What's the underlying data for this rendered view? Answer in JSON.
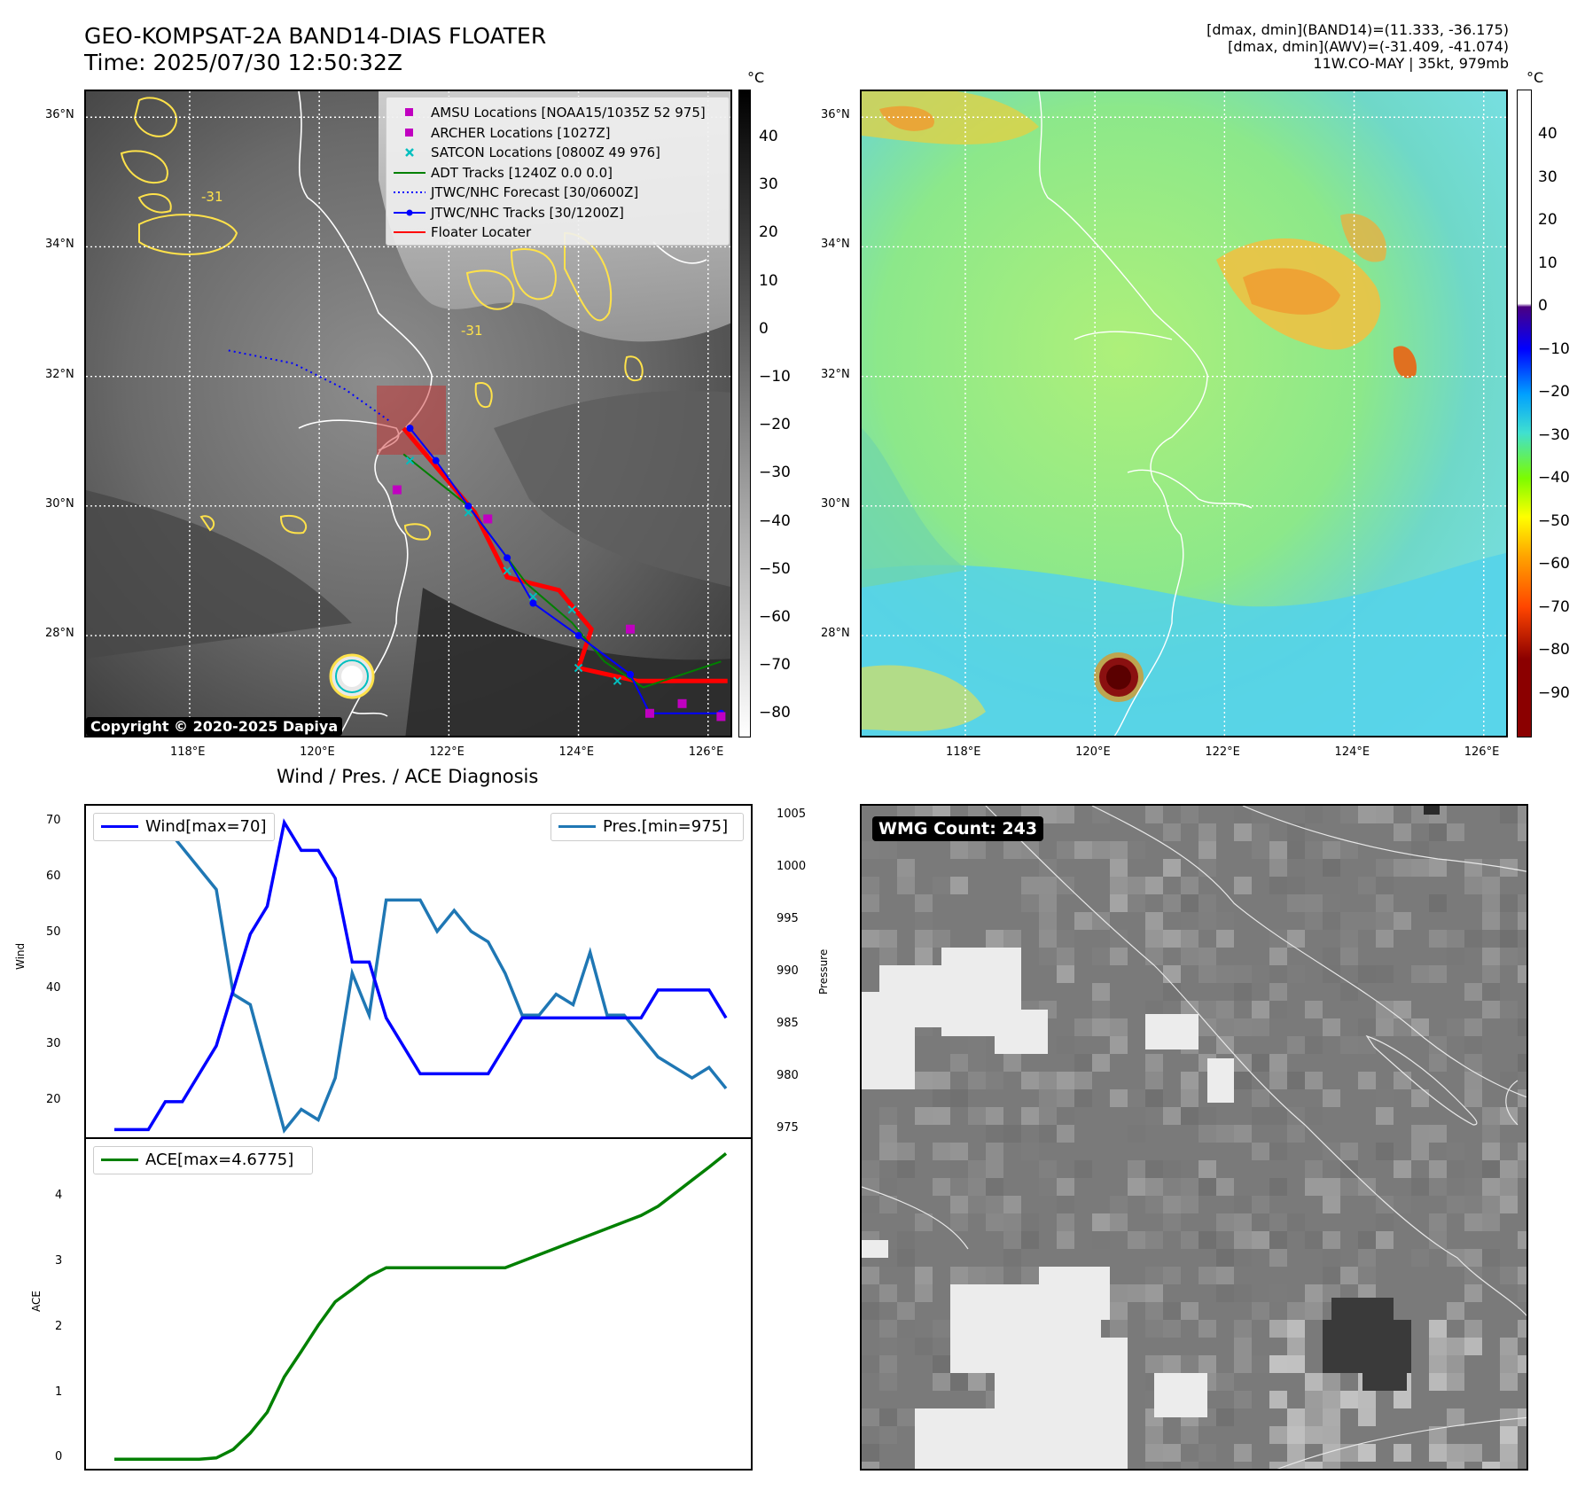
{
  "header": {
    "title_line1": "GEO-KOMPSAT-2A BAND14-DIAS FLOATER",
    "title_line2": "Time: 2025/07/30 12:50:32Z",
    "info_line1": "[dmax, dmin](BAND14)=(11.333, -36.175)",
    "info_line2": "[dmax, dmin](AWV)=(-31.409, -41.074)",
    "info_line3": "11W.CO-MAY | 35kt, 979mb"
  },
  "map": {
    "lon_ticks": [
      "118°E",
      "120°E",
      "122°E",
      "124°E",
      "126°E"
    ],
    "lat_ticks": [
      "36°N",
      "34°N",
      "32°N",
      "30°N",
      "28°N"
    ],
    "contour_labels": [
      "-31",
      "-31"
    ],
    "copyright": "Copyright © 2020-2025 Dapiya"
  },
  "legend": {
    "items": [
      {
        "label": "AMSU Locations [NOAA15/1035Z 52 975]",
        "color": "#c000c0",
        "symbol": "square"
      },
      {
        "label": "ARCHER Locations [1027Z]",
        "color": "#c000c0",
        "symbol": "square"
      },
      {
        "label": "SATCON Locations [0800Z 49 976]",
        "color": "#00bfbf",
        "symbol": "x"
      },
      {
        "label": "ADT Tracks [1240Z 0.0 0.0]",
        "color": "#008000",
        "symbol": "line"
      },
      {
        "label": "JTWC/NHC Forecast [30/0600Z]",
        "color": "#0000ff",
        "symbol": "dotted"
      },
      {
        "label": "JTWC/NHC Tracks [30/1200Z]",
        "color": "#0000ff",
        "symbol": "line-dot"
      },
      {
        "label": "Floater Locater",
        "color": "#ff0000",
        "symbol": "line"
      }
    ]
  },
  "colorbar_gray": {
    "unit": "°C",
    "ticks": [
      "40",
      "30",
      "20",
      "10",
      "0",
      "−10",
      "−20",
      "−30",
      "−40",
      "−50",
      "−60",
      "−70",
      "−80"
    ]
  },
  "colorbar_color": {
    "unit": "°C",
    "ticks": [
      "40",
      "30",
      "20",
      "10",
      "0",
      "−10",
      "−20",
      "−30",
      "−40",
      "−50",
      "−60",
      "−70",
      "−80",
      "−90"
    ]
  },
  "tracks": {
    "jtwc_forecast": [
      [
        118.6,
        32.4
      ],
      [
        119.6,
        32.2
      ],
      [
        120.4,
        31.8
      ],
      [
        121.1,
        31.3
      ]
    ],
    "jtwc_tracks": [
      [
        121.4,
        31.2
      ],
      [
        121.8,
        30.7
      ],
      [
        122.3,
        30.0
      ],
      [
        122.9,
        29.2
      ],
      [
        123.3,
        28.5
      ],
      [
        124.0,
        28.0
      ],
      [
        124.8,
        27.4
      ],
      [
        125.1,
        26.8
      ],
      [
        126.2,
        26.8
      ]
    ],
    "adt_tracks": [
      [
        121.3,
        30.8
      ],
      [
        122.3,
        30.0
      ],
      [
        123.2,
        28.8
      ],
      [
        123.9,
        28.2
      ],
      [
        124.4,
        27.6
      ],
      [
        125.0,
        27.2
      ],
      [
        126.2,
        27.6
      ]
    ],
    "floater": [
      [
        121.3,
        31.2
      ],
      [
        122.4,
        29.9
      ],
      [
        122.9,
        28.9
      ],
      [
        123.7,
        28.7
      ],
      [
        124.2,
        28.1
      ],
      [
        124.0,
        27.5
      ],
      [
        124.9,
        27.3
      ],
      [
        126.3,
        27.3
      ]
    ],
    "amsu_points": [
      [
        121.2,
        30.25
      ],
      [
        122.6,
        29.8
      ],
      [
        124.8,
        28.1
      ],
      [
        125.1,
        26.8
      ],
      [
        125.6,
        26.95
      ],
      [
        126.2,
        26.75
      ]
    ],
    "satcon_points": [
      [
        121.4,
        30.7
      ],
      [
        122.3,
        29.9
      ],
      [
        122.9,
        29.0
      ],
      [
        123.3,
        28.6
      ],
      [
        123.9,
        28.4
      ],
      [
        124.0,
        27.5
      ],
      [
        124.6,
        27.3
      ]
    ]
  },
  "diagnosis": {
    "title": "Wind / Pres. / ACE Diagnosis",
    "wind_ylabel": "Wind",
    "pres_ylabel": "Pressure",
    "ace_ylabel": "ACE",
    "wind_legend": "Wind[max=70]",
    "pres_legend": "Pres.[min=975]",
    "ace_legend": "ACE[max=4.6775]",
    "wind_ticks": [
      "70",
      "60",
      "50",
      "40",
      "30",
      "20"
    ],
    "pres_ticks": [
      "1005",
      "1000",
      "995",
      "990",
      "985",
      "980",
      "975"
    ],
    "ace_ticks": [
      "4",
      "3",
      "2",
      "1",
      "0"
    ],
    "wind_color": "#0000ff",
    "pres_color": "#1f77b4",
    "ace_color": "#008000"
  },
  "chart_data": [
    {
      "type": "line",
      "title": "Wind / Pres. / ACE Diagnosis",
      "xlabel": "",
      "ylabel": "Wind",
      "ylim": [
        13,
        73
      ],
      "series": [
        {
          "name": "Wind[max=70]",
          "values": [
            15,
            15,
            15,
            20,
            20,
            25,
            30,
            40,
            50,
            55,
            70,
            65,
            65,
            60,
            45,
            45,
            35,
            30,
            25,
            25,
            25,
            25,
            25,
            30,
            35,
            35,
            35,
            35,
            35,
            35,
            35,
            35,
            40,
            40,
            40,
            40,
            35
          ]
        }
      ]
    },
    {
      "type": "line",
      "ylabel": "Pressure",
      "ylim": [
        974,
        1006
      ],
      "series": [
        {
          "name": "Pres.[min=975]",
          "values": [
            1004,
            1004,
            1004,
            1004,
            1002,
            1000,
            998,
            988,
            987,
            981,
            975,
            977,
            976,
            980,
            990,
            986,
            997,
            997,
            997,
            994,
            996,
            994,
            993,
            990,
            986,
            986,
            988,
            987,
            992,
            986,
            986,
            984,
            982,
            981,
            980,
            981,
            979
          ]
        }
      ]
    },
    {
      "type": "line",
      "ylabel": "ACE",
      "ylim": [
        -0.2,
        4.9
      ],
      "series": [
        {
          "name": "ACE[max=4.6775]",
          "values": [
            0,
            0,
            0,
            0,
            0,
            0,
            0.02,
            0.15,
            0.4,
            0.72,
            1.26,
            1.65,
            2.05,
            2.41,
            2.6,
            2.8,
            2.93,
            2.93,
            2.93,
            2.93,
            2.93,
            2.93,
            2.93,
            2.93,
            3.03,
            3.13,
            3.23,
            3.33,
            3.43,
            3.53,
            3.63,
            3.73,
            3.87,
            4.07,
            4.27,
            4.47,
            4.6775
          ]
        }
      ]
    }
  ],
  "wmg": {
    "label": "WMG Count: 243"
  }
}
